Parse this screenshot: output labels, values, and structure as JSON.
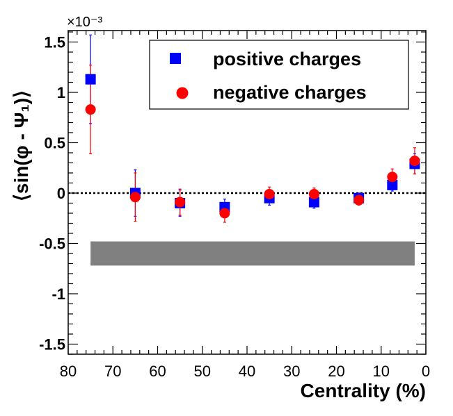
{
  "chart_data": {
    "type": "scatter",
    "title": "",
    "xlabel": "Centrality (%)",
    "ylabel": "⟨sin(φ - Ψ₁)⟩",
    "y_exponent_label": "×10⁻³",
    "xlim": [
      80,
      0
    ],
    "ylim": [
      -1.6,
      1.6
    ],
    "x_ticks": [
      80,
      70,
      60,
      50,
      40,
      30,
      20,
      10,
      0
    ],
    "x_tick_labels": [
      "80",
      "70",
      "60",
      "50",
      "40",
      "30",
      "20",
      "10",
      "0"
    ],
    "y_ticks": [
      -1.5,
      -1,
      -0.5,
      0,
      0.5,
      1,
      1.5
    ],
    "y_tick_labels": [
      "-1.5",
      "-1",
      "-0.5",
      "0",
      "0.5",
      "1",
      "1.5"
    ],
    "reference_line": 0,
    "systematic_band": {
      "x_range": [
        75,
        2.5
      ],
      "y_range": [
        -0.72,
        -0.48
      ],
      "color": "#808080"
    },
    "series": [
      {
        "name": "positive charges",
        "marker": "square",
        "color": "#0000ff",
        "x": [
          75,
          65,
          55,
          45,
          35,
          25,
          15,
          7.5,
          2.5
        ],
        "y": [
          1.13,
          0.0,
          -0.1,
          -0.14,
          -0.05,
          -0.09,
          -0.05,
          0.08,
          0.29
        ],
        "err": [
          0.44,
          0.23,
          0.13,
          0.08,
          0.07,
          0.06,
          0.05,
          0.06,
          0.1
        ]
      },
      {
        "name": "negative charges",
        "marker": "circle",
        "color": "#ff0000",
        "x": [
          75,
          65,
          55,
          45,
          35,
          25,
          15,
          7.5,
          2.5
        ],
        "y": [
          0.83,
          -0.04,
          -0.09,
          -0.2,
          -0.01,
          -0.01,
          -0.07,
          0.16,
          0.32
        ],
        "err": [
          0.44,
          0.24,
          0.13,
          0.09,
          0.07,
          0.06,
          0.05,
          0.08,
          0.13
        ]
      }
    ],
    "legend": {
      "position": "top-right",
      "entries": [
        "positive charges",
        "negative charges"
      ]
    }
  }
}
